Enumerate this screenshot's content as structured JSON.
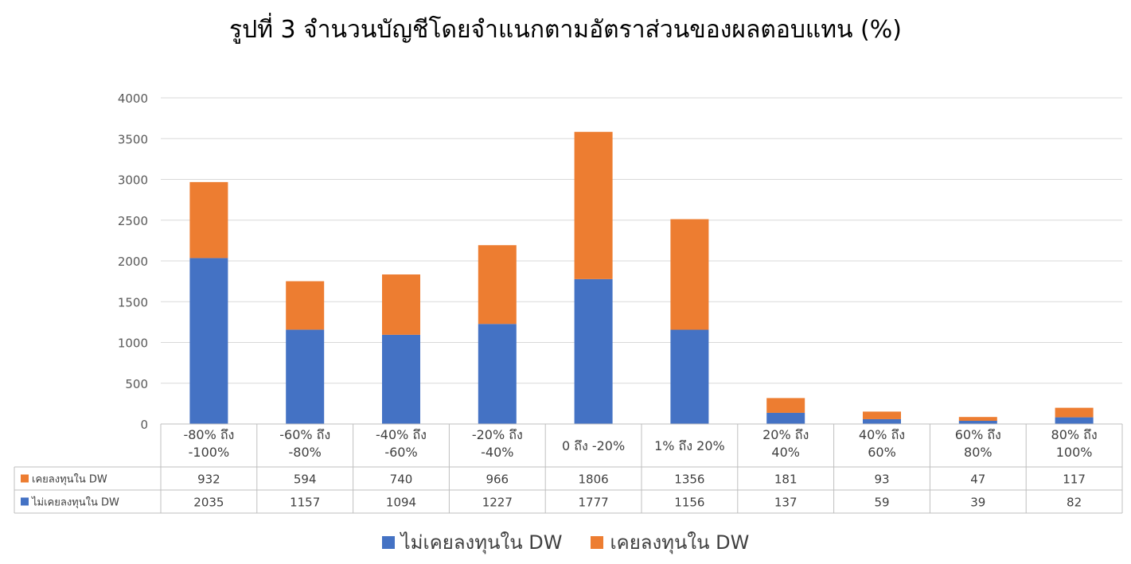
{
  "chart_data": {
    "type": "bar",
    "stacked": true,
    "title": "รูปที่ 3 จำนวนบัญชีโดยจำแนกตามอัตราส่วนของผลตอบแทน (%)",
    "categories": [
      [
        "-80% ถึง",
        "-100%"
      ],
      [
        "-60% ถึง",
        "-80%"
      ],
      [
        "-40% ถึง",
        "-60%"
      ],
      [
        "-20% ถึง",
        "-40%"
      ],
      [
        "0 ถึง -20%"
      ],
      [
        "1% ถึง 20%"
      ],
      [
        "20% ถึง",
        "40%"
      ],
      [
        "40% ถึง",
        "60%"
      ],
      [
        "60% ถึง",
        "80%"
      ],
      [
        "80% ถึง",
        "100%"
      ]
    ],
    "series": [
      {
        "name": "ไม่เคยลงทุนใน DW",
        "color": "#4472C4",
        "values": [
          2035,
          1157,
          1094,
          1227,
          1777,
          1156,
          137,
          59,
          39,
          82
        ]
      },
      {
        "name": "เคยลงทุนใน DW",
        "color": "#ED7D31",
        "values": [
          932,
          594,
          740,
          966,
          1806,
          1356,
          181,
          93,
          47,
          117
        ]
      }
    ],
    "table_row_order": [
      1,
      0
    ],
    "ylim": [
      0,
      4000
    ],
    "yticks": [
      0,
      500,
      1000,
      1500,
      2000,
      2500,
      3000,
      3500,
      4000
    ],
    "grid": true,
    "legend_position": "bottom",
    "data_table": true
  }
}
